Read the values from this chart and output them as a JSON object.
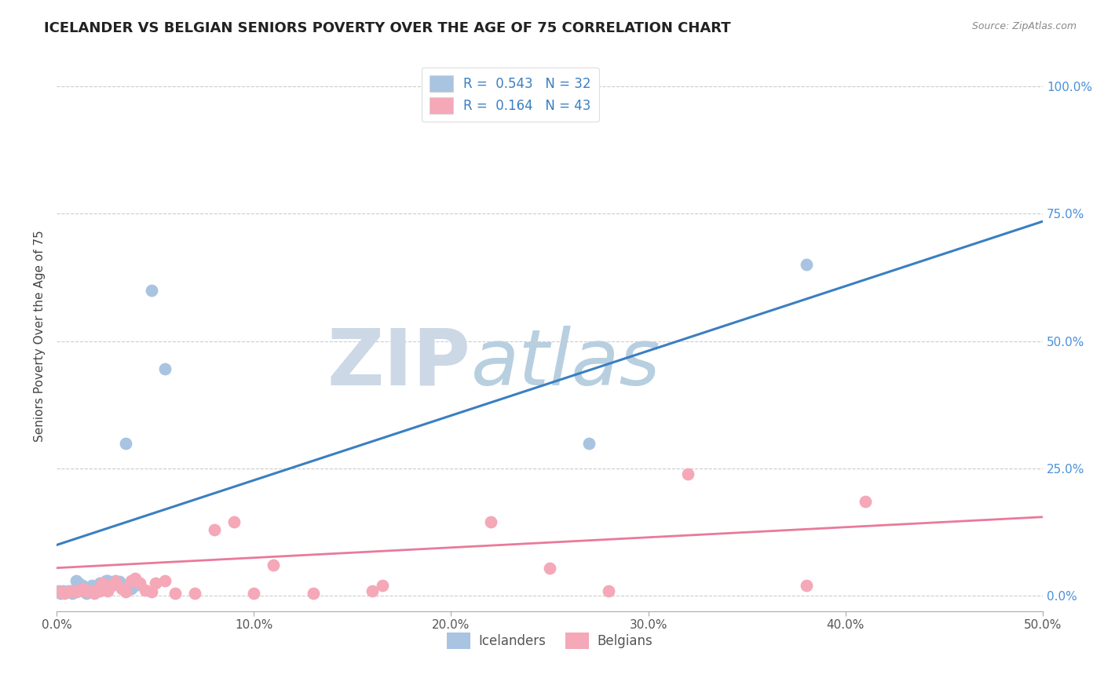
{
  "title": "ICELANDER VS BELGIAN SENIORS POVERTY OVER THE AGE OF 75 CORRELATION CHART",
  "source": "Source: ZipAtlas.com",
  "ylabel": "Seniors Poverty Over the Age of 75",
  "xlabel_ticks": [
    "0.0%",
    "10.0%",
    "20.0%",
    "30.0%",
    "40.0%",
    "50.0%"
  ],
  "ylabel_ticks": [
    "0.0%",
    "25.0%",
    "50.0%",
    "75.0%",
    "100.0%"
  ],
  "xmin": 0.0,
  "xmax": 0.5,
  "ymin": -0.03,
  "ymax": 1.05,
  "icelanders_R": 0.543,
  "icelanders_N": 32,
  "belgians_R": 0.164,
  "belgians_N": 43,
  "icelander_color": "#a8c4e0",
  "belgian_color": "#f4a8b8",
  "icelander_line_color": "#3a7fc1",
  "belgian_line_color": "#e87a9a",
  "watermark_color": "#d0dde8",
  "icelanders_x": [
    0.001,
    0.002,
    0.003,
    0.004,
    0.005,
    0.006,
    0.007,
    0.008,
    0.009,
    0.01,
    0.011,
    0.012,
    0.013,
    0.015,
    0.016,
    0.018,
    0.019,
    0.02,
    0.022,
    0.024,
    0.025,
    0.026,
    0.028,
    0.03,
    0.032,
    0.035,
    0.038,
    0.04,
    0.048,
    0.055,
    0.27,
    0.38
  ],
  "icelanders_y": [
    0.01,
    0.005,
    0.01,
    0.008,
    0.008,
    0.01,
    0.01,
    0.005,
    0.01,
    0.03,
    0.025,
    0.018,
    0.02,
    0.005,
    0.01,
    0.02,
    0.012,
    0.018,
    0.025,
    0.025,
    0.03,
    0.03,
    0.02,
    0.03,
    0.028,
    0.3,
    0.015,
    0.02,
    0.6,
    0.445,
    0.3,
    0.65
  ],
  "belgians_x": [
    0.002,
    0.004,
    0.006,
    0.008,
    0.01,
    0.011,
    0.012,
    0.013,
    0.015,
    0.016,
    0.018,
    0.019,
    0.02,
    0.022,
    0.023,
    0.025,
    0.026,
    0.028,
    0.03,
    0.033,
    0.035,
    0.038,
    0.04,
    0.042,
    0.045,
    0.048,
    0.05,
    0.055,
    0.06,
    0.07,
    0.08,
    0.09,
    0.1,
    0.11,
    0.13,
    0.16,
    0.165,
    0.22,
    0.25,
    0.28,
    0.32,
    0.38,
    0.41
  ],
  "belgians_y": [
    0.008,
    0.005,
    0.008,
    0.01,
    0.008,
    0.01,
    0.012,
    0.015,
    0.01,
    0.008,
    0.01,
    0.005,
    0.012,
    0.01,
    0.025,
    0.018,
    0.01,
    0.02,
    0.028,
    0.015,
    0.008,
    0.03,
    0.035,
    0.025,
    0.012,
    0.008,
    0.025,
    0.03,
    0.005,
    0.005,
    0.13,
    0.145,
    0.005,
    0.06,
    0.005,
    0.01,
    0.02,
    0.145,
    0.055,
    0.01,
    0.24,
    0.02,
    0.185
  ],
  "ice_line_x0": 0.0,
  "ice_line_y0": 0.1,
  "ice_line_x1": 0.5,
  "ice_line_y1": 0.735,
  "bel_line_x0": 0.0,
  "bel_line_y0": 0.055,
  "bel_line_x1": 0.5,
  "bel_line_y1": 0.155,
  "title_fontsize": 13,
  "axis_label_fontsize": 11,
  "tick_fontsize": 11,
  "legend_fontsize": 12
}
